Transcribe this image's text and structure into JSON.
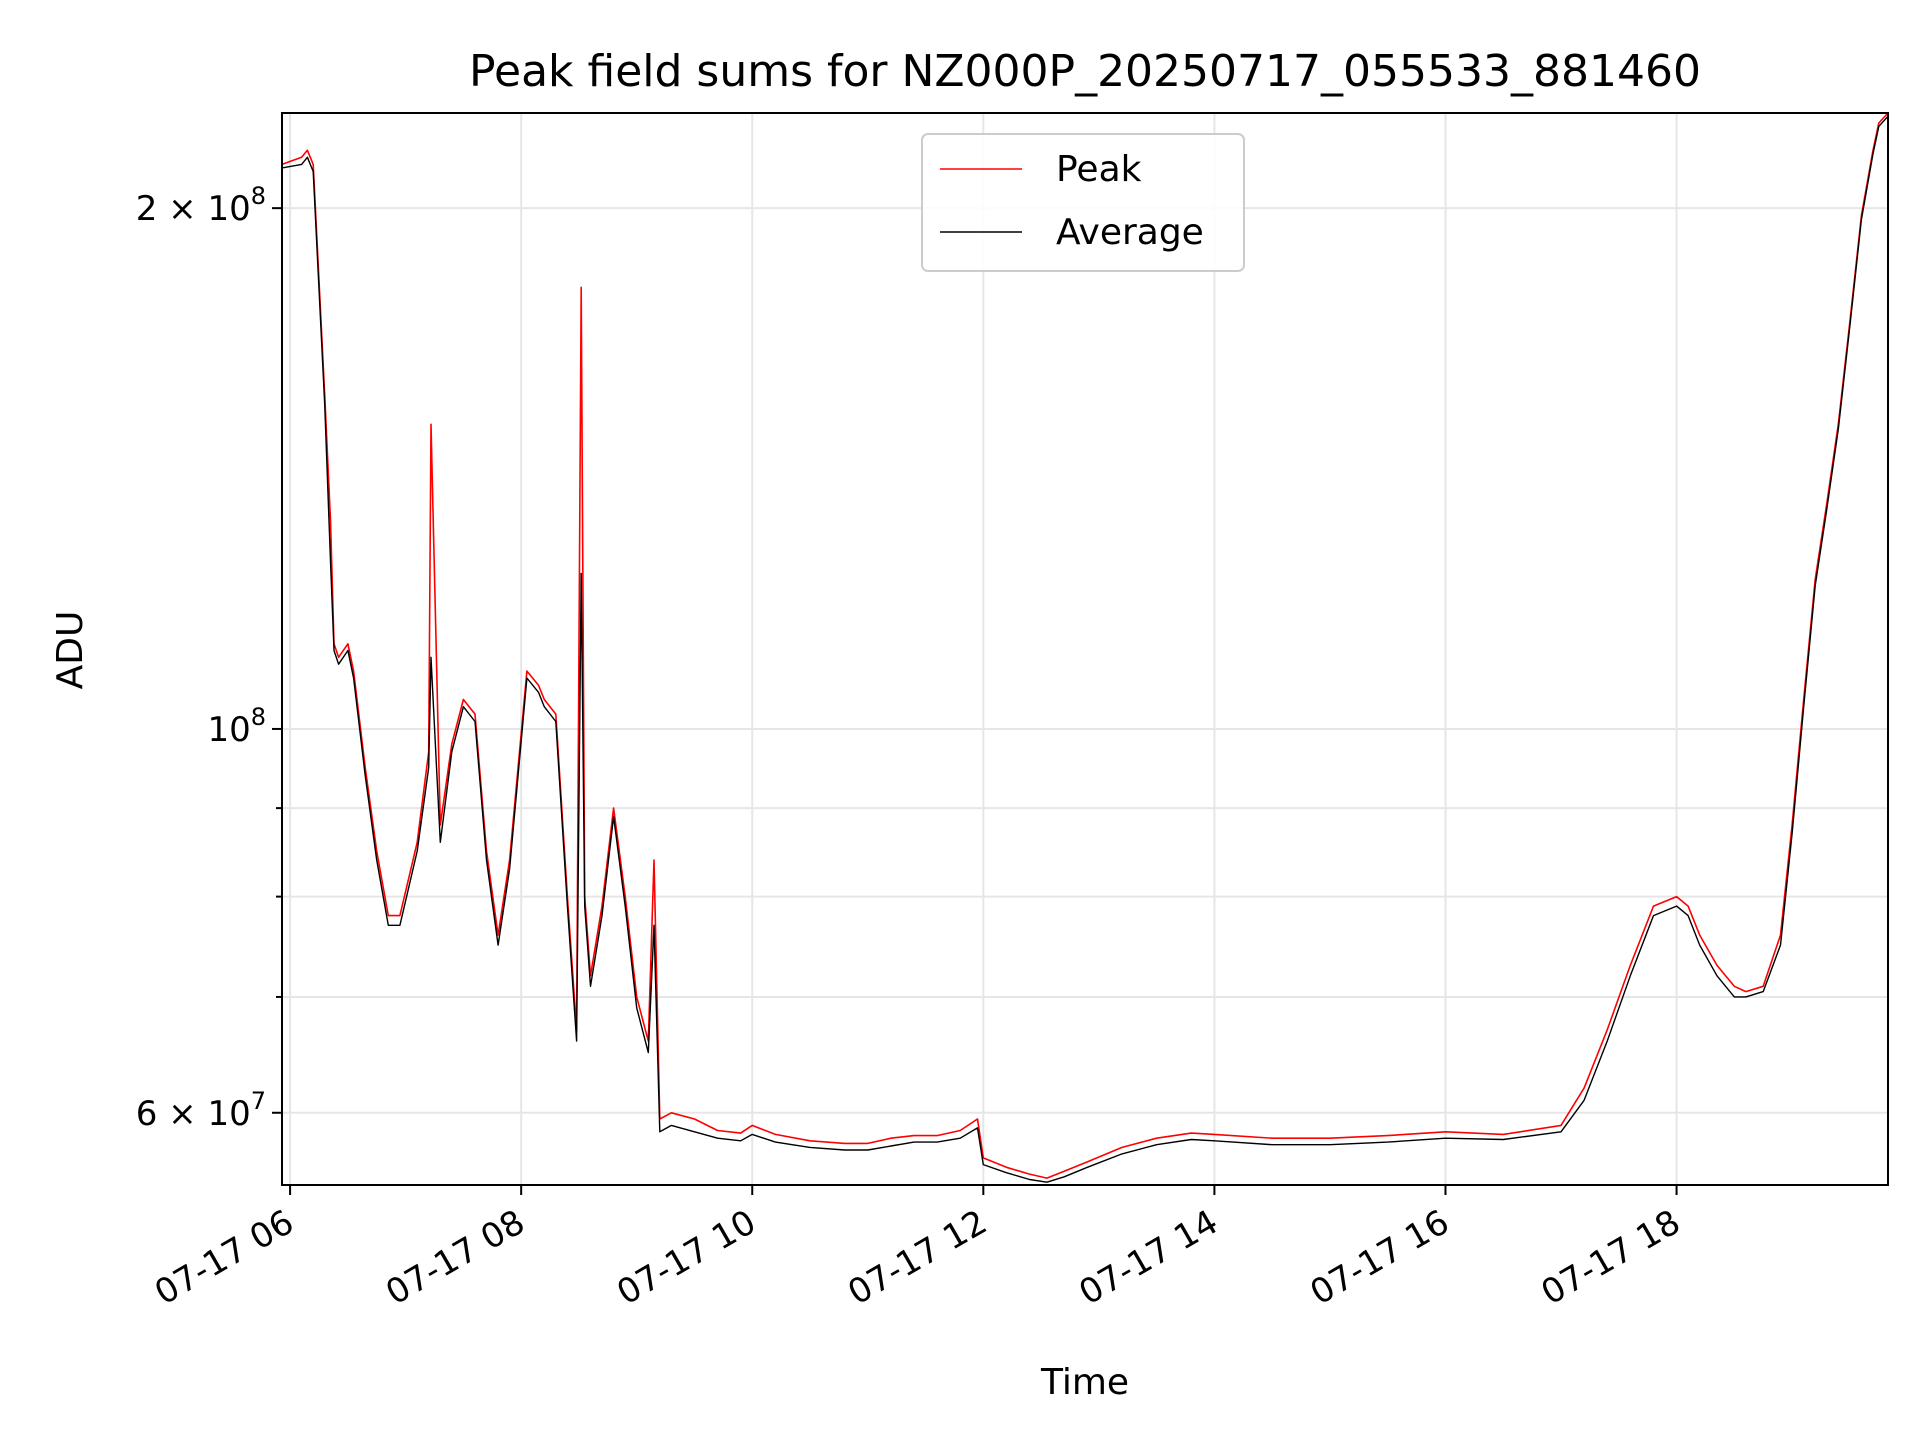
{
  "chart_data": {
    "type": "line",
    "title": "Peak field sums for NZ000P_20250717_055533_881460",
    "xlabel": "Time",
    "ylabel": "ADU",
    "yscale": "log",
    "xlim_hours": [
      5.93,
      19.83
    ],
    "ylim": [
      54500000,
      227000000
    ],
    "x_ticks": [
      {
        "value": 6,
        "label": "07-17 06"
      },
      {
        "value": 8,
        "label": "07-17 08"
      },
      {
        "value": 10,
        "label": "07-17 10"
      },
      {
        "value": 12,
        "label": "07-17 12"
      },
      {
        "value": 14,
        "label": "07-17 14"
      },
      {
        "value": 16,
        "label": "07-17 16"
      },
      {
        "value": 18,
        "label": "07-17 18"
      }
    ],
    "y_major_ticks": [
      {
        "value": 100000000,
        "base": "10",
        "exp": "8"
      },
      {
        "value": 60000000,
        "mant": "6",
        "base": "10",
        "exp": "7"
      },
      {
        "value": 200000000,
        "mant": "2",
        "base": "10",
        "exp": "8"
      }
    ],
    "y_minor_ticks": [
      70000000,
      80000000,
      90000000
    ],
    "grid": true,
    "legend_position": "top-center",
    "series": [
      {
        "name": "Peak",
        "color": "#ff0000",
        "hours": [
          5.93,
          6.1,
          6.15,
          6.2,
          6.3,
          6.35,
          6.38,
          6.42,
          6.5,
          6.55,
          6.65,
          6.75,
          6.85,
          6.95,
          7.1,
          7.2,
          7.22,
          7.3,
          7.4,
          7.5,
          7.6,
          7.7,
          7.8,
          7.9,
          8.05,
          8.15,
          8.2,
          8.3,
          8.4,
          8.48,
          8.52,
          8.55,
          8.6,
          8.7,
          8.8,
          8.9,
          9.0,
          9.1,
          9.15,
          9.2,
          9.3,
          9.5,
          9.7,
          9.9,
          10.0,
          10.2,
          10.5,
          10.8,
          11.0,
          11.2,
          11.4,
          11.6,
          11.8,
          11.95,
          12.0,
          12.2,
          12.4,
          12.55,
          12.7,
          12.9,
          13.2,
          13.5,
          13.8,
          14.0,
          14.5,
          15.0,
          15.5,
          16.0,
          16.5,
          17.0,
          17.2,
          17.4,
          17.6,
          17.8,
          18.0,
          18.1,
          18.2,
          18.35,
          18.5,
          18.6,
          18.75,
          18.9,
          19.0,
          19.1,
          19.2,
          19.3,
          19.4,
          19.5,
          19.6,
          19.7,
          19.75,
          19.83
        ],
        "values": [
          212000000,
          214000000,
          216000000,
          212000000,
          156000000,
          132000000,
          112000000,
          110000000,
          112000000,
          108000000,
          95000000,
          85000000,
          78000000,
          78000000,
          86000000,
          97000000,
          150000000,
          88000000,
          98000000,
          104000000,
          102000000,
          85000000,
          76000000,
          84000000,
          108000000,
          106000000,
          104000000,
          102000000,
          80000000,
          67000000,
          180000000,
          80000000,
          72000000,
          79000000,
          90000000,
          80000000,
          70000000,
          66000000,
          84000000,
          59500000,
          60000000,
          59500000,
          58600000,
          58400000,
          59000000,
          58300000,
          57800000,
          57600000,
          57600000,
          58000000,
          58200000,
          58200000,
          58600000,
          59500000,
          56500000,
          55800000,
          55300000,
          55000000,
          55500000,
          56200000,
          57300000,
          58000000,
          58400000,
          58300000,
          58000000,
          58000000,
          58200000,
          58500000,
          58300000,
          59000000,
          62000000,
          67000000,
          73000000,
          79000000,
          80000000,
          79000000,
          76000000,
          73000000,
          71000000,
          70500000,
          71000000,
          76000000,
          88000000,
          104000000,
          122000000,
          135000000,
          150000000,
          172000000,
          198000000,
          216000000,
          224000000,
          227000000
        ]
      },
      {
        "name": "Average",
        "color": "#000000",
        "hours": [
          5.93,
          6.1,
          6.15,
          6.2,
          6.3,
          6.35,
          6.38,
          6.42,
          6.5,
          6.55,
          6.65,
          6.75,
          6.85,
          6.95,
          7.1,
          7.2,
          7.22,
          7.3,
          7.4,
          7.5,
          7.6,
          7.7,
          7.8,
          7.9,
          8.05,
          8.15,
          8.2,
          8.3,
          8.4,
          8.48,
          8.52,
          8.55,
          8.6,
          8.7,
          8.8,
          8.9,
          9.0,
          9.1,
          9.15,
          9.2,
          9.3,
          9.5,
          9.7,
          9.9,
          10.0,
          10.2,
          10.5,
          10.8,
          11.0,
          11.2,
          11.4,
          11.6,
          11.8,
          11.95,
          12.0,
          12.2,
          12.4,
          12.55,
          12.7,
          12.9,
          13.2,
          13.5,
          13.8,
          14.0,
          14.5,
          15.0,
          15.5,
          16.0,
          16.5,
          17.0,
          17.2,
          17.4,
          17.6,
          17.8,
          18.0,
          18.1,
          18.2,
          18.35,
          18.5,
          18.6,
          18.75,
          18.9,
          19.0,
          19.1,
          19.2,
          19.3,
          19.4,
          19.5,
          19.6,
          19.7,
          19.75,
          19.83
        ],
        "values": [
          211000000,
          212000000,
          214000000,
          210000000,
          154000000,
          125000000,
          111000000,
          109000000,
          111000000,
          107000000,
          94000000,
          84000000,
          77000000,
          77000000,
          85000000,
          95000000,
          110000000,
          86000000,
          97000000,
          103000000,
          101000000,
          84000000,
          75000000,
          83000000,
          107000000,
          105000000,
          103000000,
          101000000,
          79000000,
          66000000,
          123000000,
          79000000,
          71000000,
          78000000,
          89000000,
          79000000,
          69000000,
          65000000,
          77000000,
          58500000,
          59000000,
          58500000,
          58000000,
          57800000,
          58300000,
          57700000,
          57300000,
          57100000,
          57100000,
          57400000,
          57700000,
          57700000,
          58000000,
          58800000,
          56000000,
          55400000,
          54900000,
          54700000,
          55100000,
          55800000,
          56800000,
          57500000,
          57900000,
          57800000,
          57500000,
          57500000,
          57700000,
          58000000,
          57900000,
          58500000,
          61000000,
          66000000,
          72000000,
          78000000,
          79000000,
          78000000,
          75000000,
          72000000,
          70000000,
          70000000,
          70500000,
          75000000,
          87000000,
          103000000,
          121000000,
          134000000,
          149000000,
          171000000,
          197000000,
          215000000,
          223000000,
          226000000
        ]
      }
    ]
  }
}
